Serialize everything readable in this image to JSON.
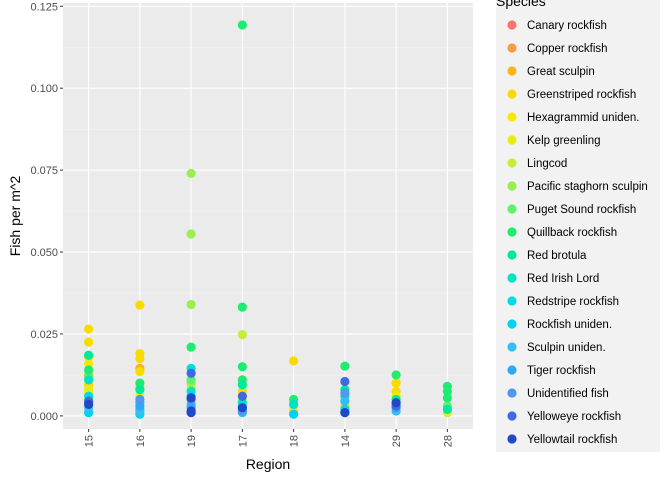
{
  "chart_data": {
    "type": "scatter",
    "xlabel": "Region",
    "ylabel": "Fish per m^2",
    "ylim": [
      -0.004,
      0.126
    ],
    "yticks": [
      0.0,
      0.025,
      0.05,
      0.075,
      0.1,
      0.125
    ],
    "ytick_labels": [
      "0.000",
      "0.025",
      "0.050",
      "0.075",
      "0.100",
      "0.125"
    ],
    "categories": [
      "15",
      "16",
      "19",
      "17",
      "18",
      "14",
      "29",
      "28"
    ],
    "grid": true,
    "legend": {
      "title": "Species",
      "position": "right"
    },
    "series": [
      {
        "name": "Canary rockfish",
        "color": "#F8766D",
        "points": []
      },
      {
        "name": "Copper rockfish",
        "color": "#F99B45",
        "points": []
      },
      {
        "name": "Great sculpin",
        "color": "#F9B31C",
        "points": [
          [
            "15",
            0.0125
          ],
          [
            "16",
            0.0145
          ]
        ]
      },
      {
        "name": "Greenstriped rockfish",
        "color": "#FADB00",
        "points": [
          [
            "15",
            0.0265
          ],
          [
            "15",
            0.0225
          ],
          [
            "15",
            0.018
          ],
          [
            "15",
            0.0095
          ],
          [
            "16",
            0.0338
          ],
          [
            "16",
            0.019
          ],
          [
            "16",
            0.0175
          ],
          [
            "16",
            0.0135
          ],
          [
            "16",
            0.009
          ],
          [
            "17",
            0.0075
          ],
          [
            "18",
            0.0168
          ],
          [
            "18",
            0.0015
          ],
          [
            "14",
            0.003
          ],
          [
            "29",
            0.01
          ],
          [
            "29",
            0.0075
          ]
        ]
      },
      {
        "name": "Hexagrammid uniden.",
        "color": "#F8E800",
        "points": [
          [
            "15",
            0.016
          ],
          [
            "15",
            0.007
          ],
          [
            "17",
            0.005
          ],
          [
            "29",
            0.006
          ]
        ]
      },
      {
        "name": "Kelp greenling",
        "color": "#E6ED10",
        "points": [
          [
            "15",
            0.008
          ],
          [
            "16",
            0.006
          ],
          [
            "17",
            0.0045
          ],
          [
            "28",
            0.001
          ]
        ]
      },
      {
        "name": "Lingcod",
        "color": "#C4EE3A",
        "points": [
          [
            "17",
            0.0248
          ],
          [
            "19",
            0.0085
          ],
          [
            "15",
            0.005
          ],
          [
            "18",
            0.003
          ]
        ]
      },
      {
        "name": "Pacific staghorn sculpin",
        "color": "#97F04E",
        "points": [
          [
            "19",
            0.074
          ],
          [
            "19",
            0.0555
          ],
          [
            "19",
            0.034
          ],
          [
            "19",
            0.01
          ]
        ]
      },
      {
        "name": "Puget Sound rockfish",
        "color": "#5EF26A",
        "points": [
          [
            "19",
            0.011
          ],
          [
            "15",
            0.012
          ],
          [
            "28",
            0.003
          ]
        ]
      },
      {
        "name": "Quillback rockfish",
        "color": "#1EEC70",
        "points": [
          [
            "17",
            0.1193
          ],
          [
            "17",
            0.0332
          ],
          [
            "19",
            0.021
          ],
          [
            "15",
            0.014
          ],
          [
            "16",
            0.01
          ],
          [
            "17",
            0.015
          ],
          [
            "17",
            0.011
          ],
          [
            "18",
            0.005
          ],
          [
            "14",
            0.0152
          ],
          [
            "29",
            0.0125
          ],
          [
            "28",
            0.009
          ],
          [
            "28",
            0.0075
          ],
          [
            "28",
            0.0055
          ]
        ]
      },
      {
        "name": "Red brotula",
        "color": "#00E89A",
        "points": [
          [
            "15",
            0.0185
          ],
          [
            "16",
            0.008
          ],
          [
            "17",
            0.0095
          ],
          [
            "14",
            0.008
          ],
          [
            "29",
            0.005
          ],
          [
            "28",
            0.002
          ]
        ]
      },
      {
        "name": "Red Irish Lord",
        "color": "#00E2C4",
        "points": [
          [
            "15",
            0.011
          ],
          [
            "16",
            0.004
          ],
          [
            "19",
            0.0075
          ],
          [
            "17",
            0.004
          ],
          [
            "18",
            0.0035
          ],
          [
            "14",
            0.006
          ]
        ]
      },
      {
        "name": "Redstripe rockfish",
        "color": "#00DCE2",
        "points": [
          [
            "15",
            0.006
          ],
          [
            "16",
            0.002
          ],
          [
            "19",
            0.0145
          ],
          [
            "17",
            0.002
          ],
          [
            "14",
            0.001
          ]
        ]
      },
      {
        "name": "Rockfish uniden.",
        "color": "#00D2F0",
        "points": [
          [
            "15",
            0.001
          ],
          [
            "16",
            0.0005
          ],
          [
            "19",
            0.006
          ],
          [
            "17",
            0.003
          ],
          [
            "18",
            0.0005
          ],
          [
            "14",
            0.002
          ]
        ]
      },
      {
        "name": "Sculpin uniden.",
        "color": "#35BEF5",
        "points": [
          [
            "15",
            0.0025
          ],
          [
            "16",
            0.0015
          ],
          [
            "19",
            0.0035
          ],
          [
            "17",
            0.001
          ],
          [
            "14",
            0.0045
          ],
          [
            "29",
            0.0015
          ]
        ]
      },
      {
        "name": "Tiger rockfish",
        "color": "#2FA8F5",
        "points": [
          [
            "16",
            0.003
          ],
          [
            "19",
            0.0025
          ],
          [
            "29",
            0.0025
          ]
        ]
      },
      {
        "name": "Unidentified fish",
        "color": "#5296F0",
        "points": [
          [
            "15",
            0.004
          ],
          [
            "16",
            0.005
          ],
          [
            "19",
            0.005
          ],
          [
            "17",
            0.0015
          ],
          [
            "14",
            0.007
          ],
          [
            "29",
            0.0035
          ]
        ]
      },
      {
        "name": "Yelloweye rockfish",
        "color": "#4169E1",
        "points": [
          [
            "15",
            0.0045
          ],
          [
            "19",
            0.013
          ],
          [
            "17",
            0.006
          ],
          [
            "14",
            0.0105
          ],
          [
            "29",
            0.003
          ]
        ]
      },
      {
        "name": "Yellowtail rockfish",
        "color": "#2148C6",
        "points": [
          [
            "15",
            0.0035
          ],
          [
            "19",
            0.0015
          ],
          [
            "19",
            0.001
          ],
          [
            "19",
            0.0055
          ],
          [
            "17",
            0.0025
          ],
          [
            "14",
            0.001
          ],
          [
            "29",
            0.004
          ]
        ]
      }
    ]
  }
}
